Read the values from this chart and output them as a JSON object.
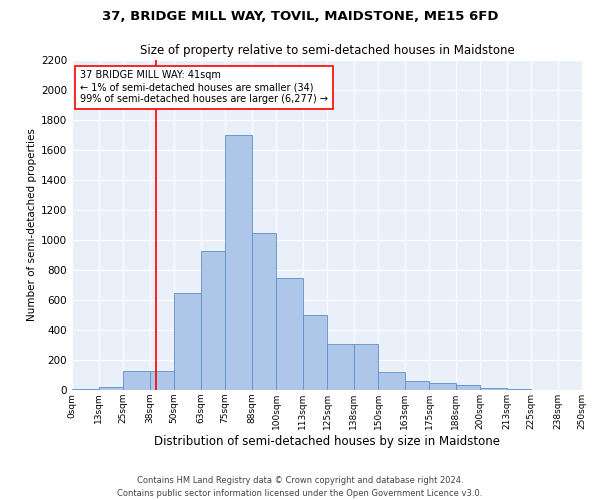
{
  "title1": "37, BRIDGE MILL WAY, TOVIL, MAIDSTONE, ME15 6FD",
  "title2": "Size of property relative to semi-detached houses in Maidstone",
  "xlabel": "Distribution of semi-detached houses by size in Maidstone",
  "ylabel": "Number of semi-detached properties",
  "footnote1": "Contains HM Land Registry data © Crown copyright and database right 2024.",
  "footnote2": "Contains public sector information licensed under the Open Government Licence v3.0.",
  "annotation_line1": "37 BRIDGE MILL WAY: 41sqm",
  "annotation_line2": "← 1% of semi-detached houses are smaller (34)",
  "annotation_line3": "99% of semi-detached houses are larger (6,277) →",
  "bin_edges": [
    0,
    13,
    25,
    38,
    50,
    63,
    75,
    88,
    100,
    113,
    125,
    138,
    150,
    163,
    175,
    188,
    200,
    213,
    225,
    238,
    250
  ],
  "bar_values": [
    5,
    20,
    130,
    130,
    650,
    930,
    1700,
    1050,
    750,
    500,
    310,
    310,
    120,
    60,
    45,
    35,
    15,
    5,
    3,
    2
  ],
  "bar_color": "#aec6e8",
  "bar_edge_color": "#5b8fc9",
  "vline_x": 41,
  "vline_color": "red",
  "background_color": "#eaf0f9",
  "ylim": [
    0,
    2200
  ],
  "yticks": [
    0,
    200,
    400,
    600,
    800,
    1000,
    1200,
    1400,
    1600,
    1800,
    2000,
    2200
  ],
  "tick_labels": [
    "0sqm",
    "13sqm",
    "25sqm",
    "38sqm",
    "50sqm",
    "63sqm",
    "75sqm",
    "88sqm",
    "100sqm",
    "113sqm",
    "125sqm",
    "138sqm",
    "150sqm",
    "163sqm",
    "175sqm",
    "188sqm",
    "200sqm",
    "213sqm",
    "225sqm",
    "238sqm",
    "250sqm"
  ],
  "title1_fontsize": 9.5,
  "title2_fontsize": 8.5,
  "ylabel_fontsize": 7.5,
  "xlabel_fontsize": 8.5,
  "tick_fontsize": 6.5,
  "ytick_fontsize": 7.5,
  "footnote_fontsize": 6.0
}
